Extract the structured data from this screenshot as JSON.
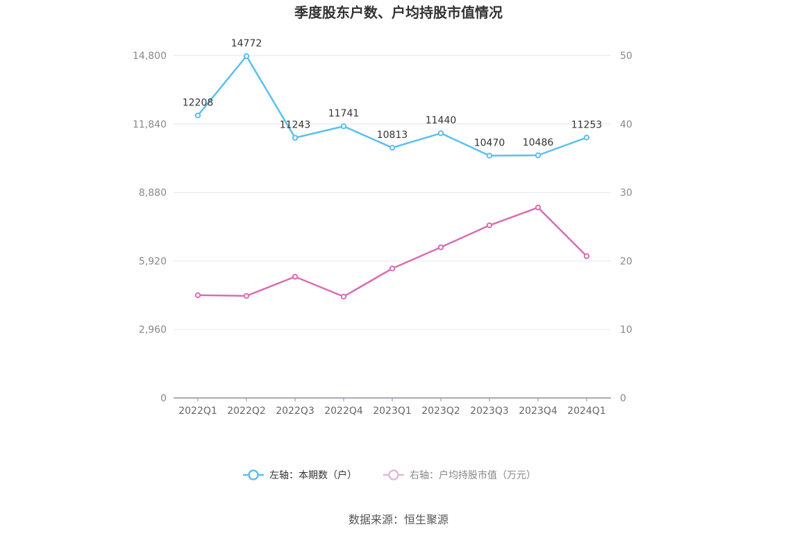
{
  "chart_data": {
    "type": "line",
    "title": "季度股东户数、户均持股市值情况",
    "categories": [
      "2022Q1",
      "2022Q2",
      "2022Q3",
      "2022Q4",
      "2023Q1",
      "2023Q2",
      "2023Q3",
      "2023Q4",
      "2024Q1"
    ],
    "y_left": {
      "ticks": [
        "0",
        "2,960",
        "5,920",
        "8,880",
        "11,840",
        "14,800"
      ],
      "ylim": [
        0,
        14800
      ]
    },
    "y_right": {
      "ticks": [
        "0",
        "10",
        "20",
        "30",
        "40",
        "50"
      ],
      "ylim": [
        0,
        50
      ]
    },
    "grid": true,
    "legend_position": "bottom",
    "series": [
      {
        "name": "左轴：本期数（户）",
        "axis": "left",
        "color": "#5bbfee",
        "values": [
          12208,
          14772,
          11243,
          11741,
          10813,
          11440,
          10470,
          10486,
          11253
        ],
        "labels": [
          "12208",
          "14772",
          "11243",
          "11741",
          "10813",
          "11440",
          "10470",
          "10486",
          "11253"
        ]
      },
      {
        "name": "右轴：户均持股市值（万元）",
        "axis": "right",
        "color": "#d86db5",
        "values": [
          15.0,
          14.9,
          17.7,
          14.8,
          18.9,
          22.0,
          25.2,
          27.8,
          20.7
        ]
      }
    ]
  },
  "source": "数据来源：恒生聚源",
  "colors": {
    "grid": "#e3e6ee",
    "axis": "#8a8f9e",
    "legend_right_muted": "#e6b8d8"
  }
}
